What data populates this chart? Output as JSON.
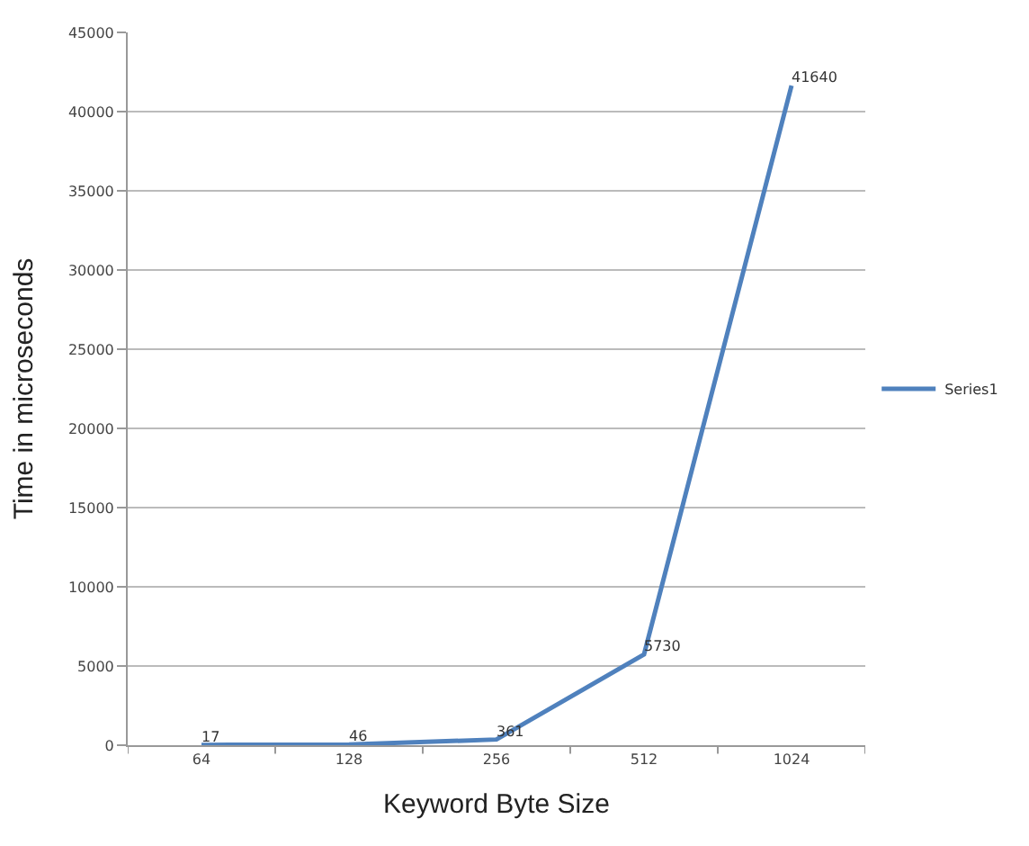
{
  "chart_data": {
    "type": "line",
    "xlabel": "Keyword Byte Size",
    "ylabel": "Time in microseconds",
    "categories": [
      "64",
      "128",
      "256",
      "512",
      "1024"
    ],
    "series": [
      {
        "name": "Series1",
        "color": "#4f81bd",
        "values": [
          17,
          46,
          361,
          5730,
          41640
        ]
      }
    ],
    "data_labels": true,
    "ylim": [
      0,
      45000
    ],
    "yticks": [
      0,
      5000,
      10000,
      15000,
      20000,
      25000,
      30000,
      35000,
      40000,
      45000
    ],
    "grid": "y",
    "legend": "right",
    "marker": "none",
    "line_style": "solid"
  }
}
